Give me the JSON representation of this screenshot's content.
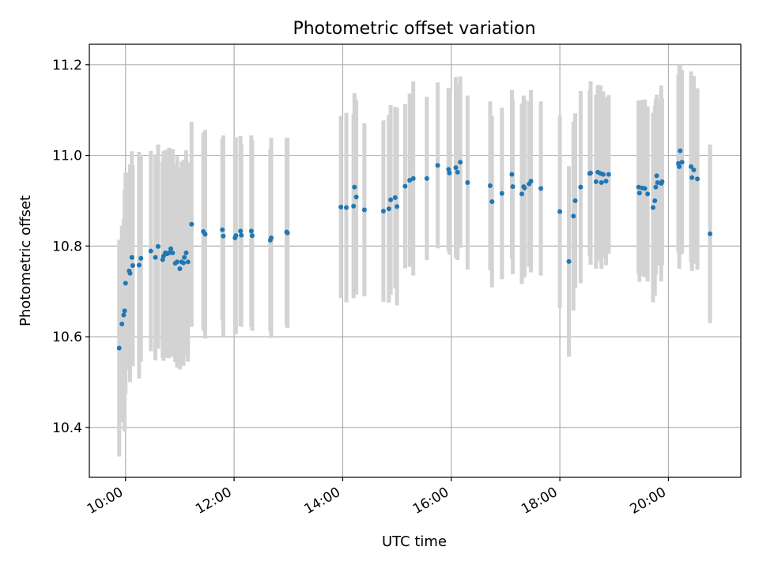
{
  "chart_data": {
    "type": "scatter",
    "title": "Photometric offset variation",
    "xlabel": "UTC time",
    "ylabel": "Photometric offset",
    "xlim": [
      "09:20",
      "21:20"
    ],
    "ylim": [
      10.29,
      11.245
    ],
    "grid": true,
    "x_ticks": [
      "10:00",
      "12:00",
      "14:00",
      "16:00",
      "18:00",
      "20:00"
    ],
    "y_ticks": [
      "10.4",
      "10.6",
      "10.8",
      "11.0",
      "11.2"
    ],
    "colors": {
      "points": "#1f77b4",
      "errorbars": "#d3d3d3",
      "grid": "#b0b0b0"
    },
    "series": [
      {
        "x": [
          "09:53",
          "09:56",
          "09:58",
          "09:59",
          "10:00",
          "10:04",
          "10:05",
          "10:07",
          "10:08",
          "10:15",
          "10:17",
          "10:28",
          "10:33",
          "10:36",
          "10:41",
          "10:42",
          "10:44",
          "10:46",
          "10:48",
          "10:50",
          "10:52",
          "10:55",
          "10:57",
          "11:00",
          "11:02",
          "11:04",
          "11:05",
          "11:07",
          "11:09",
          "11:13",
          "11:26",
          "11:28",
          "11:47",
          "11:48",
          "12:01",
          "12:02",
          "12:07",
          "12:08",
          "12:19",
          "12:20",
          "12:40",
          "12:41",
          "12:58",
          "12:59",
          "13:58",
          "14:04",
          "14:12",
          "14:13",
          "14:15",
          "14:24",
          "14:45",
          "14:51",
          "14:53",
          "14:58",
          "15:00",
          "15:09",
          "15:14",
          "15:18",
          "15:33",
          "15:45",
          "15:57",
          "15:58",
          "16:05",
          "16:07",
          "16:10",
          "16:18",
          "16:43",
          "16:45",
          "16:56",
          "17:07",
          "17:08",
          "17:18",
          "17:20",
          "17:21",
          "17:26",
          "17:28",
          "17:39",
          "18:00",
          "18:10",
          "18:15",
          "18:17",
          "18:23",
          "18:33",
          "18:34",
          "18:40",
          "18:42",
          "18:45",
          "18:46",
          "18:48",
          "18:51",
          "18:54",
          "19:27",
          "19:28",
          "19:31",
          "19:34",
          "19:37",
          "19:43",
          "19:45",
          "19:46",
          "19:47",
          "19:48",
          "19:52",
          "19:53",
          "20:11",
          "20:12",
          "20:13",
          "20:15",
          "20:25",
          "20:26",
          "20:28",
          "20:32",
          "20:46"
        ],
        "y": [
          10.575,
          10.628,
          10.648,
          10.657,
          10.718,
          10.745,
          10.74,
          10.775,
          10.757,
          10.758,
          10.773,
          10.789,
          10.775,
          10.799,
          10.77,
          10.778,
          10.785,
          10.783,
          10.785,
          10.794,
          10.785,
          10.762,
          10.765,
          10.75,
          10.765,
          10.763,
          10.775,
          10.785,
          10.765,
          10.848,
          10.832,
          10.826,
          10.836,
          10.822,
          10.818,
          10.823,
          10.833,
          10.824,
          10.833,
          10.823,
          10.813,
          10.818,
          10.831,
          10.829,
          10.886,
          10.885,
          10.888,
          10.93,
          10.908,
          10.88,
          10.877,
          10.882,
          10.902,
          10.907,
          10.887,
          10.932,
          10.945,
          10.949,
          10.949,
          10.978,
          10.969,
          10.961,
          10.973,
          10.963,
          10.985,
          10.94,
          10.933,
          10.898,
          10.916,
          10.958,
          10.931,
          10.915,
          10.931,
          10.928,
          10.937,
          10.943,
          10.927,
          10.876,
          10.766,
          10.866,
          10.9,
          10.93,
          10.96,
          10.961,
          10.942,
          10.963,
          10.96,
          10.94,
          10.958,
          10.943,
          10.958,
          10.93,
          10.917,
          10.928,
          10.927,
          10.915,
          10.885,
          10.9,
          10.93,
          10.955,
          10.94,
          10.938,
          10.942,
          10.982,
          10.975,
          11.01,
          10.985,
          10.975,
          10.951,
          10.968,
          10.948,
          10.827
        ],
        "err": [
          0.239,
          0.217,
          0.212,
          0.266,
          0.244,
          0.217,
          0.24,
          0.234,
          0.222,
          0.25,
          0.228,
          0.221,
          0.227,
          0.225,
          0.216,
          0.231,
          0.227,
          0.229,
          0.232,
          0.22,
          0.229,
          0.218,
          0.233,
          0.222,
          0.221,
          0.227,
          0.214,
          0.226,
          0.22,
          0.226,
          0.218,
          0.23,
          0.2,
          0.222,
          0.213,
          0.217,
          0.21,
          0.202,
          0.211,
          0.21,
          0.201,
          0.221,
          0.206,
          0.21,
          0.201,
          0.209,
          0.203,
          0.207,
          0.215,
          0.191,
          0.2,
          0.207,
          0.209,
          0.2,
          0.218,
          0.181,
          0.191,
          0.214,
          0.18,
          0.183,
          0.18,
          0.18,
          0.2,
          0.194,
          0.189,
          0.192,
          0.186,
          0.189,
          0.189,
          0.186,
          0.193,
          0.199,
          0.201,
          0.196,
          0.183,
          0.201,
          0.192,
          0.212,
          0.21,
          0.208,
          0.193,
          0.212,
          0.183,
          0.202,
          0.192,
          0.192,
          0.194,
          0.19,
          0.183,
          0.185,
          0.175,
          0.191,
          0.196,
          0.194,
          0.196,
          0.193,
          0.209,
          0.209,
          0.194,
          0.179,
          0.183,
          0.216,
          0.184,
          0.196,
          0.225,
          0.19,
          0.203,
          0.21,
          0.206,
          0.207,
          0.2,
          0.197
        ]
      }
    ]
  }
}
